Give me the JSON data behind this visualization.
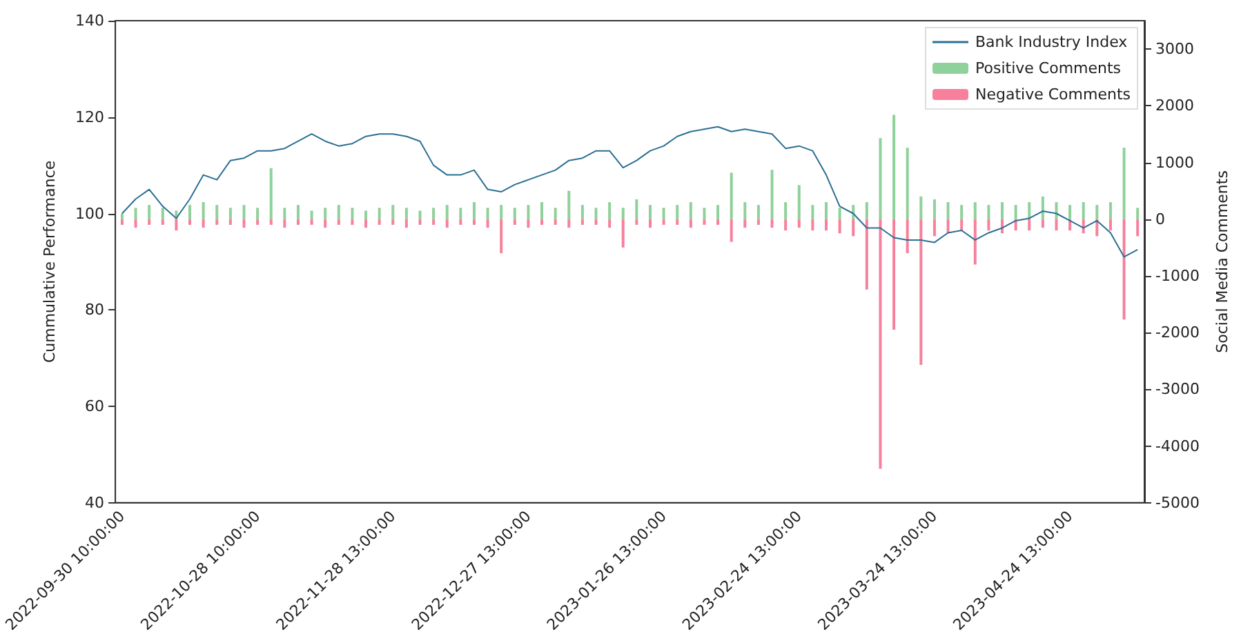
{
  "chart_data": {
    "type": "bar",
    "ylabel": "Cummulative Performance",
    "y2label": "Social Media Comments",
    "categories": [
      "2022-09-30 10:00:00",
      null,
      null,
      null,
      null,
      null,
      null,
      null,
      null,
      null,
      "2022-10-28 10:00:00",
      null,
      null,
      null,
      null,
      null,
      null,
      null,
      null,
      null,
      "2022-11-28 13:00:00",
      null,
      null,
      null,
      null,
      null,
      null,
      null,
      null,
      null,
      "2022-12-27 13:00:00",
      null,
      null,
      null,
      null,
      null,
      null,
      null,
      null,
      null,
      "2023-01-26 13:00:00",
      null,
      null,
      null,
      null,
      null,
      null,
      null,
      null,
      null,
      "2023-02-24 13:00:00",
      null,
      null,
      null,
      null,
      null,
      null,
      null,
      null,
      null,
      "2023-03-24 13:00:00",
      null,
      null,
      null,
      null,
      null,
      null,
      null,
      null,
      null,
      "2023-04-24 13:00:00",
      null,
      null,
      null,
      null,
      null
    ],
    "series": [
      {
        "name": "Bank Industry Index",
        "type": "line",
        "color": "#2b6f93",
        "values": [
          100,
          103,
          105,
          101.5,
          99,
          103,
          108,
          107,
          111,
          111.5,
          113,
          113,
          113.5,
          115,
          116.5,
          115,
          114,
          114.5,
          116,
          116.5,
          116.5,
          116,
          115,
          110,
          108,
          108,
          109,
          105,
          104.5,
          106,
          107,
          108,
          109,
          111,
          111.5,
          113,
          113,
          109.5,
          111,
          113,
          114,
          116,
          117,
          117.5,
          118,
          117,
          117.5,
          117,
          116.5,
          113.5,
          114,
          113,
          108,
          101.5,
          100,
          97,
          97,
          95,
          94.5,
          94.5,
          94,
          96,
          96.5,
          94.5,
          96,
          97,
          98.5,
          99,
          100.5,
          100,
          98.5,
          97,
          98.5,
          96,
          91,
          92.5
        ]
      },
      {
        "name": "Positive Comments",
        "axis": "y2",
        "color": "#8fd19a",
        "values": [
          100,
          200,
          250,
          200,
          150,
          250,
          300,
          250,
          200,
          250,
          200,
          900,
          200,
          250,
          150,
          200,
          250,
          200,
          150,
          200,
          250,
          200,
          150,
          200,
          250,
          200,
          300,
          200,
          250,
          200,
          250,
          300,
          200,
          500,
          250,
          200,
          300,
          200,
          350,
          250,
          200,
          250,
          300,
          200,
          250,
          820,
          300,
          250,
          870,
          300,
          600,
          250,
          300,
          200,
          250,
          300,
          1430,
          1840,
          1260,
          400,
          350,
          300,
          250,
          300,
          250,
          300,
          250,
          300,
          400,
          300,
          250,
          300,
          250,
          300,
          1260,
          200
        ]
      },
      {
        "name": "Negative Comments",
        "axis": "y2",
        "color": "#f7809c",
        "values": [
          -100,
          -150,
          -100,
          -100,
          -200,
          -100,
          -150,
          -100,
          -100,
          -150,
          -100,
          -100,
          -150,
          -100,
          -100,
          -150,
          -100,
          -100,
          -150,
          -100,
          -100,
          -150,
          -100,
          -100,
          -150,
          -100,
          -100,
          -150,
          -600,
          -100,
          -150,
          -100,
          -100,
          -150,
          -100,
          -100,
          -150,
          -500,
          -100,
          -150,
          -100,
          -100,
          -150,
          -100,
          -100,
          -400,
          -150,
          -100,
          -150,
          -200,
          -150,
          -200,
          -200,
          -250,
          -300,
          -1240,
          -4400,
          -1950,
          -600,
          -2570,
          -300,
          -250,
          -200,
          -800,
          -200,
          -250,
          -200,
          -200,
          -150,
          -200,
          -200,
          -250,
          -300,
          -200,
          -1770,
          -300
        ]
      }
    ],
    "ylim": [
      40,
      140
    ],
    "yticks": [
      40,
      60,
      80,
      100,
      120,
      140
    ],
    "y2lim": [
      -5000,
      3500
    ],
    "y2ticks": [
      -5000,
      -4000,
      -3000,
      -2000,
      -1000,
      0,
      1000,
      2000,
      3000
    ],
    "legend": "top right",
    "grid": false
  }
}
